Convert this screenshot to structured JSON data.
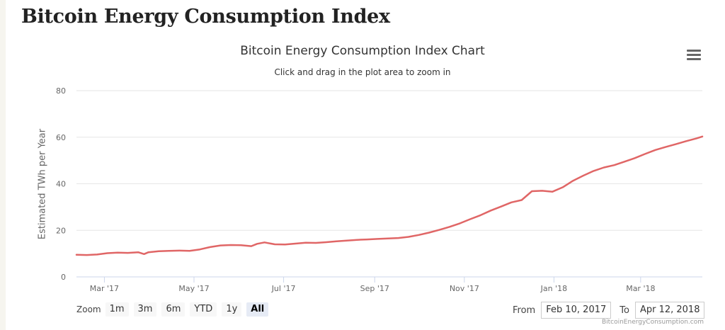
{
  "page": {
    "heading": "Bitcoin Energy Consumption Index",
    "menu_icon": "hamburger-menu-icon"
  },
  "chart_data": {
    "type": "line",
    "title": "Bitcoin Energy Consumption Index Chart",
    "subtitle": "Click and drag in the plot area to zoom in",
    "ylabel": "Estimated TWh per Year",
    "xlabel": "",
    "ylim": [
      0,
      80
    ],
    "xlim": [
      "2017-02-10",
      "2018-04-12"
    ],
    "yticks": [
      0,
      20,
      40,
      60,
      80
    ],
    "xticks": [
      {
        "date": "2017-03-01",
        "label": "Mar '17"
      },
      {
        "date": "2017-05-01",
        "label": "May '17"
      },
      {
        "date": "2017-07-01",
        "label": "Jul '17"
      },
      {
        "date": "2017-09-01",
        "label": "Sep '17"
      },
      {
        "date": "2017-11-01",
        "label": "Nov '17"
      },
      {
        "date": "2018-01-01",
        "label": "Jan '18"
      },
      {
        "date": "2018-03-01",
        "label": "Mar '18"
      }
    ],
    "grid": true,
    "line_color": "#e06666",
    "series": [
      {
        "x": [
          "2017-02-10",
          "2017-02-17",
          "2017-02-24",
          "2017-03-03",
          "2017-03-10",
          "2017-03-17",
          "2017-03-24",
          "2017-03-28",
          "2017-03-31",
          "2017-04-07",
          "2017-04-14",
          "2017-04-21",
          "2017-04-28",
          "2017-05-05",
          "2017-05-12",
          "2017-05-19",
          "2017-05-26",
          "2017-06-02",
          "2017-06-09",
          "2017-06-13",
          "2017-06-18",
          "2017-06-25",
          "2017-07-02",
          "2017-07-09",
          "2017-07-16",
          "2017-07-23",
          "2017-07-30",
          "2017-08-06",
          "2017-08-13",
          "2017-08-20",
          "2017-08-27",
          "2017-09-03",
          "2017-09-10",
          "2017-09-17",
          "2017-09-24",
          "2017-10-01",
          "2017-10-08",
          "2017-10-15",
          "2017-10-22",
          "2017-10-29",
          "2017-11-05",
          "2017-11-12",
          "2017-11-19",
          "2017-11-26",
          "2017-12-03",
          "2017-12-10",
          "2017-12-17",
          "2017-12-24",
          "2017-12-31",
          "2018-01-07",
          "2018-01-14",
          "2018-01-21",
          "2018-01-28",
          "2018-02-04",
          "2018-02-11",
          "2018-02-18",
          "2018-02-25",
          "2018-03-04",
          "2018-03-11",
          "2018-03-18",
          "2018-03-25",
          "2018-04-01",
          "2018-04-08",
          "2018-04-12"
        ],
        "y": [
          9.5,
          9.4,
          9.6,
          10.2,
          10.4,
          10.3,
          10.6,
          9.8,
          10.6,
          11.0,
          11.2,
          11.3,
          11.2,
          11.8,
          12.8,
          13.5,
          13.7,
          13.6,
          13.2,
          14.2,
          14.8,
          14.0,
          13.9,
          14.3,
          14.7,
          14.6,
          14.9,
          15.3,
          15.6,
          15.9,
          16.1,
          16.3,
          16.5,
          16.7,
          17.2,
          18.0,
          19.0,
          20.2,
          21.5,
          23.0,
          24.8,
          26.5,
          28.5,
          30.2,
          32.0,
          33.0,
          36.8,
          37.0,
          36.6,
          38.5,
          41.3,
          43.5,
          45.5,
          47.0,
          48.0,
          49.5,
          51.0,
          52.8,
          54.5,
          55.8,
          57.0,
          58.3,
          59.5,
          60.3
        ]
      }
    ]
  },
  "zoom": {
    "label": "Zoom",
    "buttons": [
      "1m",
      "3m",
      "6m",
      "YTD",
      "1y",
      "All"
    ],
    "active": "All"
  },
  "range": {
    "from_label": "From",
    "from_value": "Feb 10, 2017",
    "to_label": "To",
    "to_value": "Apr 12, 2018"
  },
  "credit": "BitcoinEnergyConsumption.com"
}
